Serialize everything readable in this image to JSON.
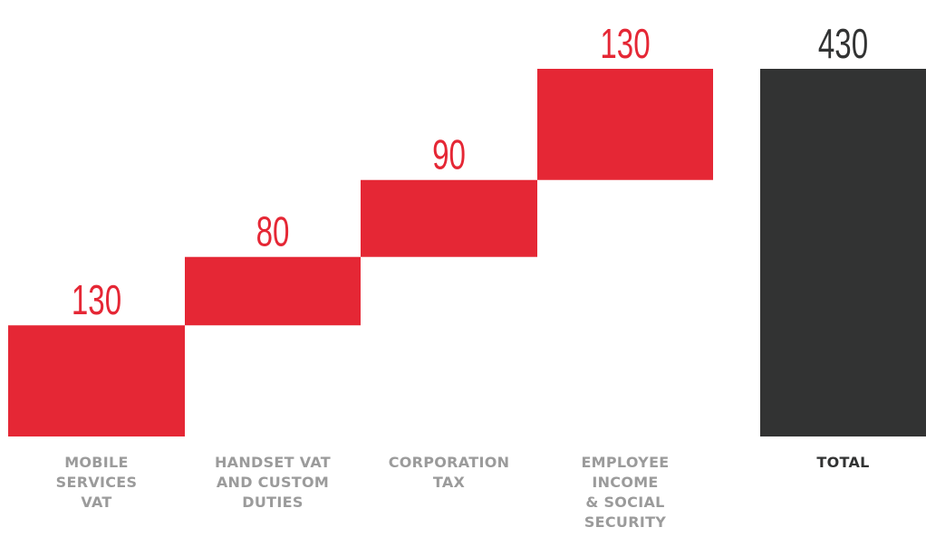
{
  "chart_data": {
    "type": "bar",
    "subtype": "waterfall",
    "categories": [
      [
        "MOBILE",
        "SERVICES",
        "VAT"
      ],
      [
        "HANDSET VAT",
        "AND CUSTOM",
        "DUTIES"
      ],
      [
        "CORPORATION",
        "TAX"
      ],
      [
        "EMPLOYEE",
        "INCOME",
        "& SOCIAL",
        "SECURITY"
      ],
      [
        "TOTAL"
      ]
    ],
    "values": [
      130,
      80,
      90,
      130,
      430
    ],
    "is_total": [
      false,
      false,
      false,
      false,
      true
    ],
    "value_labels": [
      "130",
      "80",
      "90",
      "130",
      "430"
    ],
    "ylim": [
      0,
      430
    ],
    "grid": false,
    "legend": "none",
    "colors": {
      "increment": "#e52735",
      "total": "#323333",
      "increment_label": "#e52735",
      "total_label": "#323333",
      "category_label": "#9b9b9b",
      "total_category_label": "#323333"
    }
  }
}
